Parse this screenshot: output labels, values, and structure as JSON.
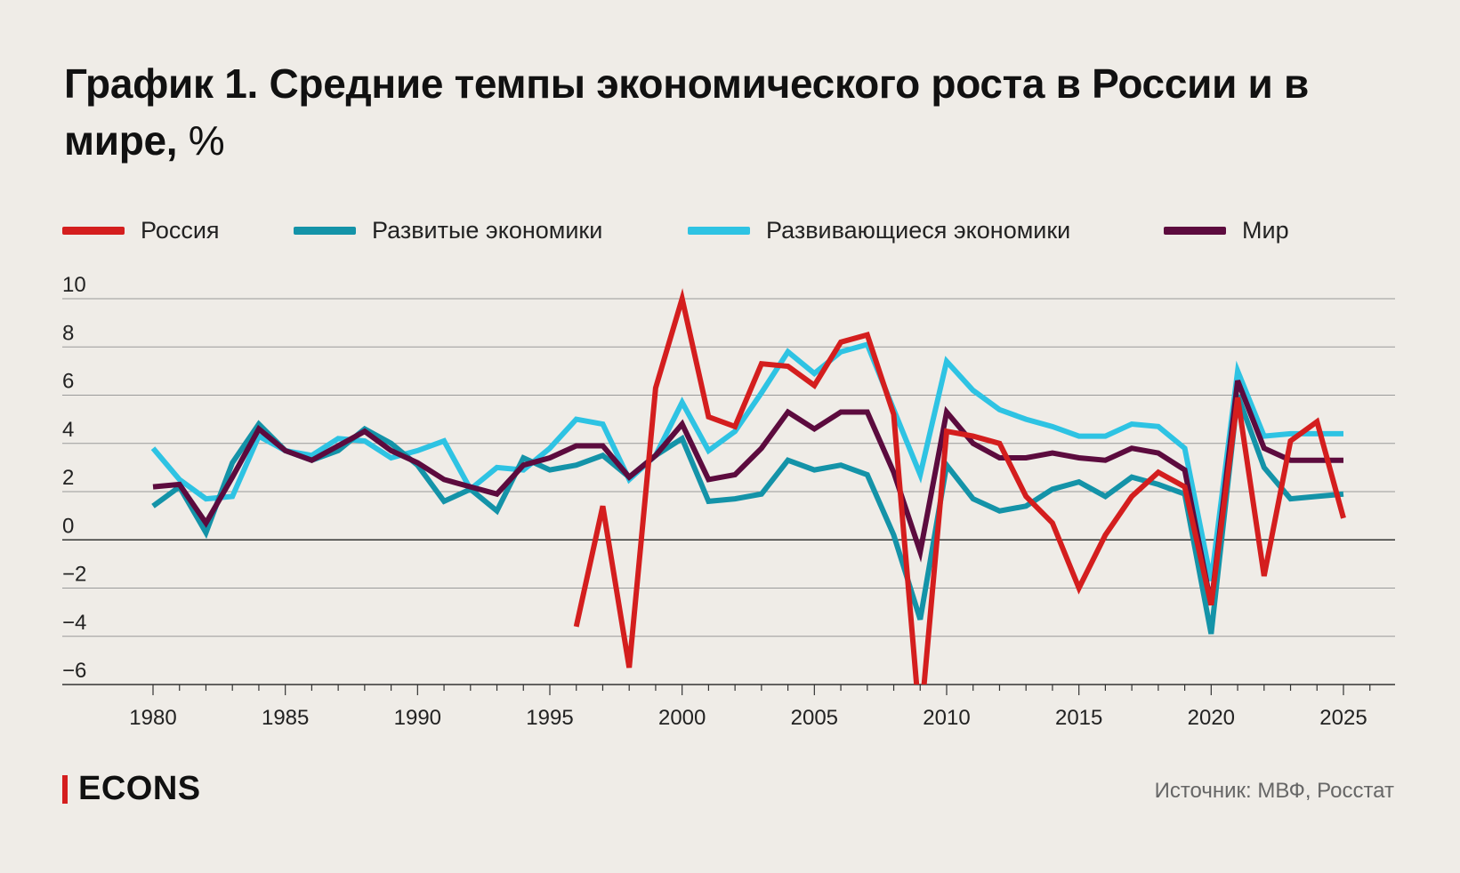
{
  "title": {
    "main": "График 1. Средние темпы экономического роста в России и в мире,",
    "unit": "%"
  },
  "source": "Источник: МВФ, Росстат",
  "logo": {
    "text": "ECONS",
    "accent_color": "#d41e1e"
  },
  "legend": [
    {
      "label": "Россия",
      "color": "#d41e1e"
    },
    {
      "label": "Развитые экономики",
      "color": "#1493a8"
    },
    {
      "label": "Развивающиеся экономики",
      "color": "#2ec3e3"
    },
    {
      "label": "Мир",
      "color": "#5c0b3e"
    }
  ],
  "chart_data": {
    "type": "line",
    "x": [
      1980,
      1981,
      1982,
      1983,
      1984,
      1985,
      1986,
      1987,
      1988,
      1989,
      1990,
      1991,
      1992,
      1993,
      1994,
      1995,
      1996,
      1997,
      1998,
      1999,
      2000,
      2001,
      2002,
      2003,
      2004,
      2005,
      2006,
      2007,
      2008,
      2009,
      2010,
      2011,
      2012,
      2013,
      2014,
      2015,
      2016,
      2017,
      2018,
      2019,
      2020,
      2021,
      2022,
      2023,
      2024,
      2025
    ],
    "ylim": [
      -6,
      10
    ],
    "xlim": [
      1979,
      2027
    ],
    "y_ticks": [
      10,
      8,
      6,
      4,
      2,
      0,
      -2,
      -4,
      -6
    ],
    "y_tick_labels": [
      "10",
      "8",
      "6",
      "4",
      "2",
      "0",
      "−2",
      "−4",
      "−6"
    ],
    "x_ticks": [
      1980,
      1985,
      1990,
      1995,
      2000,
      2005,
      2010,
      2015,
      2020,
      2025
    ],
    "x_tick_labels": [
      "1980",
      "1985",
      "1990",
      "1995",
      "2000",
      "2005",
      "2010",
      "2015",
      "2020",
      "2025"
    ],
    "grid": true,
    "legend_position": "top",
    "series": [
      {
        "name": "Развивающиеся экономики",
        "color": "#2ec3e3",
        "values": [
          3.8,
          2.5,
          1.7,
          1.8,
          4.3,
          3.7,
          3.5,
          4.2,
          4.1,
          3.4,
          3.7,
          4.1,
          2.1,
          3.0,
          2.9,
          3.8,
          5.0,
          4.8,
          2.5,
          3.5,
          5.7,
          3.7,
          4.5,
          6.1,
          7.8,
          6.9,
          7.8,
          8.1,
          5.4,
          2.7,
          7.4,
          6.2,
          5.4,
          5.0,
          4.7,
          4.3,
          4.3,
          4.8,
          4.7,
          3.8,
          -1.7,
          7.0,
          4.3,
          4.4,
          4.4,
          4.4
        ]
      },
      {
        "name": "Развитые экономики",
        "color": "#1493a8",
        "values": [
          1.4,
          2.2,
          0.3,
          3.2,
          4.8,
          3.7,
          3.3,
          3.7,
          4.6,
          4.0,
          3.1,
          1.6,
          2.1,
          1.2,
          3.4,
          2.9,
          3.1,
          3.5,
          2.6,
          3.5,
          4.2,
          1.6,
          1.7,
          1.9,
          3.3,
          2.9,
          3.1,
          2.7,
          0.2,
          -3.3,
          3.1,
          1.7,
          1.2,
          1.4,
          2.1,
          2.4,
          1.8,
          2.6,
          2.3,
          1.9,
          -3.9,
          6.0,
          3.0,
          1.7,
          1.8,
          1.9
        ]
      },
      {
        "name": "Мир",
        "color": "#5c0b3e",
        "values": [
          2.2,
          2.3,
          0.7,
          2.6,
          4.6,
          3.7,
          3.3,
          3.9,
          4.5,
          3.7,
          3.2,
          2.5,
          2.2,
          1.9,
          3.1,
          3.4,
          3.9,
          3.9,
          2.6,
          3.5,
          4.8,
          2.5,
          2.7,
          3.8,
          5.3,
          4.6,
          5.3,
          5.3,
          2.8,
          -0.5,
          5.3,
          4.0,
          3.4,
          3.4,
          3.6,
          3.4,
          3.3,
          3.8,
          3.6,
          2.9,
          -2.7,
          6.6,
          3.8,
          3.3,
          3.3,
          3.3
        ]
      },
      {
        "name": "Россия",
        "color": "#d41e1e",
        "values": [
          null,
          null,
          null,
          null,
          null,
          null,
          null,
          null,
          null,
          null,
          null,
          null,
          null,
          null,
          null,
          null,
          -3.6,
          1.4,
          -5.3,
          6.3,
          10.0,
          5.1,
          4.7,
          7.3,
          7.2,
          6.4,
          8.2,
          8.5,
          5.2,
          -7.8,
          4.5,
          4.3,
          4.0,
          1.8,
          0.7,
          -2.0,
          0.2,
          1.8,
          2.8,
          2.2,
          -2.7,
          5.9,
          -1.5,
          4.1,
          4.9,
          0.9
        ]
      }
    ]
  }
}
